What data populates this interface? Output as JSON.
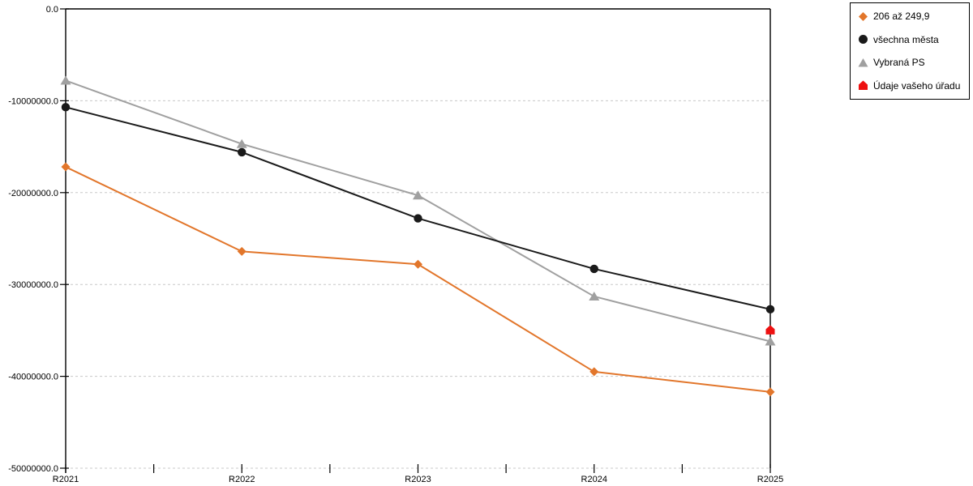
{
  "chart_data": {
    "type": "line",
    "title": "",
    "xlabel": "",
    "ylabel": "",
    "categories": [
      "R2021",
      "R2022",
      "R2023",
      "R2024",
      "R2025"
    ],
    "series": [
      {
        "name": "206 až 249,9",
        "marker": "diamond",
        "color": "#E2762B",
        "values": [
          -17200000,
          -26400000,
          -27800000,
          -39500000,
          -41700000
        ]
      },
      {
        "name": "všechna města",
        "marker": "circle",
        "color": "#1A1A1A",
        "values": [
          -10700000,
          -15600000,
          -22800000,
          -28300000,
          -32700000
        ]
      },
      {
        "name": "Vybraná PS",
        "marker": "triangle",
        "color": "#A0A0A0",
        "values": [
          -7800000,
          -14700000,
          -20300000,
          -31300000,
          -36200000
        ]
      },
      {
        "name": "Údaje vašeho úřadu",
        "marker": "pentagon",
        "color": "#EE1111",
        "values": [
          null,
          null,
          null,
          null,
          -35000000
        ]
      }
    ],
    "ylim": [
      -50000000,
      0
    ],
    "yticks": [
      {
        "value": 0,
        "label": "0.0"
      },
      {
        "value": -10000000,
        "label": "-10000000.0"
      },
      {
        "value": -20000000,
        "label": "-20000000.0"
      },
      {
        "value": -30000000,
        "label": "-30000000.0"
      },
      {
        "value": -40000000,
        "label": "-40000000.0"
      },
      {
        "value": -50000000,
        "label": "-50000000.0"
      }
    ],
    "grid": "horizontal-dashed",
    "legend_position": "top-right",
    "colors": {
      "axis": "#000000",
      "gridline": "#C8C8C8",
      "background": "#FFFFFF",
      "tick_label": "#000000"
    }
  }
}
